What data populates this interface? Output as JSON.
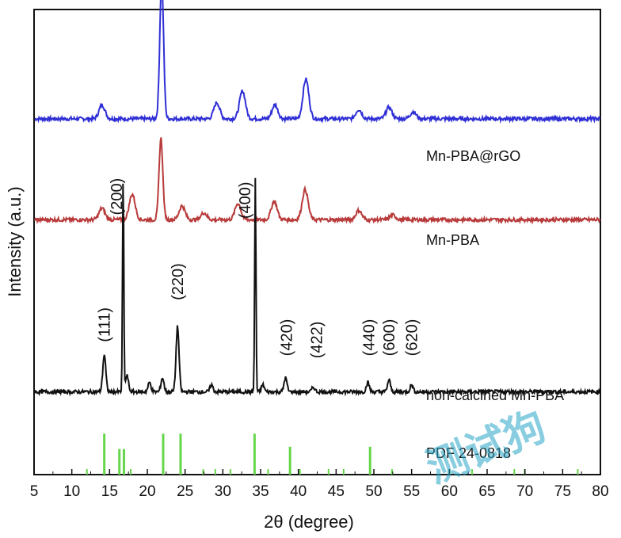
{
  "chart_data": {
    "type": "line",
    "xlabel": "2θ (degree)",
    "ylabel": "Intensity (a.u.)",
    "xlim": [
      5,
      80
    ],
    "xticks": [
      5,
      10,
      15,
      20,
      25,
      30,
      35,
      40,
      45,
      50,
      55,
      60,
      65,
      70,
      75,
      80
    ],
    "ylim": [
      0,
      1
    ],
    "grid": false,
    "series": [
      {
        "name": "Mn-PBA@rGO",
        "color": "#2f2fd6",
        "offset": 0.765,
        "peaks": [
          {
            "x": 14.0,
            "h": 0.03
          },
          {
            "x": 21.9,
            "h": 0.3
          },
          {
            "x": 29.2,
            "h": 0.035
          },
          {
            "x": 32.6,
            "h": 0.06
          },
          {
            "x": 36.9,
            "h": 0.03
          },
          {
            "x": 41.0,
            "h": 0.085
          },
          {
            "x": 48.0,
            "h": 0.02
          },
          {
            "x": 52.0,
            "h": 0.025
          },
          {
            "x": 55.2,
            "h": 0.015
          }
        ]
      },
      {
        "name": "Mn-PBA",
        "color": "#b83a3a",
        "offset": 0.548,
        "peaks": [
          {
            "x": 14.0,
            "h": 0.025
          },
          {
            "x": 18.0,
            "h": 0.055
          },
          {
            "x": 21.8,
            "h": 0.175
          },
          {
            "x": 24.6,
            "h": 0.03
          },
          {
            "x": 27.5,
            "h": 0.015
          },
          {
            "x": 32.0,
            "h": 0.035
          },
          {
            "x": 36.8,
            "h": 0.04
          },
          {
            "x": 40.9,
            "h": 0.065
          },
          {
            "x": 48.0,
            "h": 0.02
          },
          {
            "x": 52.5,
            "h": 0.01
          }
        ]
      },
      {
        "name": "non-calcined Mn-PBA",
        "color": "#111111",
        "offset": 0.178,
        "peaks": [
          {
            "x": 14.3,
            "h": 0.08
          },
          {
            "x": 16.8,
            "h": 0.455
          },
          {
            "x": 17.3,
            "h": 0.035
          },
          {
            "x": 20.3,
            "h": 0.02
          },
          {
            "x": 22.0,
            "h": 0.03
          },
          {
            "x": 24.0,
            "h": 0.14
          },
          {
            "x": 28.5,
            "h": 0.015
          },
          {
            "x": 34.3,
            "h": 0.46
          },
          {
            "x": 35.3,
            "h": 0.015
          },
          {
            "x": 38.3,
            "h": 0.03
          },
          {
            "x": 42.0,
            "h": 0.01
          },
          {
            "x": 49.2,
            "h": 0.02
          },
          {
            "x": 52.0,
            "h": 0.025
          },
          {
            "x": 55.0,
            "h": 0.015
          }
        ]
      }
    ],
    "reference": {
      "name": "PDF 24-0818",
      "color": "#66d64a",
      "lines": [
        {
          "x": 14.3,
          "h": 0.088
        },
        {
          "x": 16.3,
          "h": 0.055
        },
        {
          "x": 16.9,
          "h": 0.055
        },
        {
          "x": 22.1,
          "h": 0.088
        },
        {
          "x": 24.4,
          "h": 0.088
        },
        {
          "x": 34.2,
          "h": 0.088
        },
        {
          "x": 38.9,
          "h": 0.06
        },
        {
          "x": 49.5,
          "h": 0.06
        }
      ]
    },
    "annotations": [
      {
        "text": "(111)",
        "x": 14.3,
        "y": 0.285
      },
      {
        "text": "(200)",
        "x": 15.9,
        "y": 0.558
      },
      {
        "text": "(220)",
        "x": 24.0,
        "y": 0.375
      },
      {
        "text": "(400)",
        "x": 32.9,
        "y": 0.55
      },
      {
        "text": "(420)",
        "x": 38.4,
        "y": 0.255
      },
      {
        "text": "(422)",
        "x": 42.4,
        "y": 0.25
      },
      {
        "text": "(440)",
        "x": 49.3,
        "y": 0.255
      },
      {
        "text": "(600)",
        "x": 52.0,
        "y": 0.255
      },
      {
        "text": "(620)",
        "x": 55.0,
        "y": 0.255
      }
    ],
    "watermark": "测试狗"
  }
}
